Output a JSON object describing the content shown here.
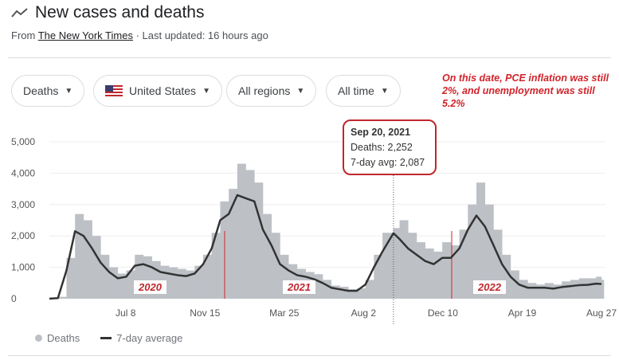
{
  "header": {
    "title": "New cases and deaths",
    "icon": "trending-line-icon",
    "from_label": "From",
    "source": "The New York Times",
    "updated": "· Last updated: 16 hours ago"
  },
  "filters": [
    {
      "label": "Deaths"
    },
    {
      "label": "United States",
      "icon": "us-flag-icon"
    },
    {
      "label": "All regions"
    },
    {
      "label": "All time"
    }
  ],
  "annotation": "On this date, PCE inflation was still 2%, and unemployment was still 5.2%",
  "tooltip": {
    "date": "Sep 20, 2021",
    "deaths": "Deaths: 2,252",
    "avg": "7-day avg: 2,087"
  },
  "year_labels": [
    "2020",
    "2021",
    "2022"
  ],
  "legend": {
    "bars": "Deaths",
    "line": "7-day average"
  },
  "colors": {
    "bars": "#bdc1c6",
    "line": "#333333",
    "annotation": "#d1232a"
  },
  "chart_data": {
    "type": "bar+line",
    "ylim": [
      0,
      5500
    ],
    "yticks": [
      {
        "v": 0,
        "label": "0"
      },
      {
        "v": 1000,
        "label": "1,000"
      },
      {
        "v": 2000,
        "label": "2,000"
      },
      {
        "v": 3000,
        "label": "3,000"
      },
      {
        "v": 4000,
        "label": "4,000"
      },
      {
        "v": 5000,
        "label": "5,000"
      }
    ],
    "xticks": [
      {
        "date": "2020-07-08",
        "label": "Jul 8"
      },
      {
        "date": "2020-11-15",
        "label": "Nov 15"
      },
      {
        "date": "2021-03-25",
        "label": "Mar 25"
      },
      {
        "date": "2021-08-02",
        "label": "Aug 2"
      },
      {
        "date": "2021-12-10",
        "label": "Dec 10"
      },
      {
        "date": "2022-04-19",
        "label": "Apr 19"
      },
      {
        "date": "2022-08-27",
        "label": "Aug 27"
      }
    ],
    "grid": true,
    "legend_position": "bottom-left",
    "series": [
      {
        "name": "7-day average",
        "kind": "line",
        "points": [
          [
            "2020-03-05",
            0
          ],
          [
            "2020-03-19",
            20
          ],
          [
            "2020-04-02",
            900
          ],
          [
            "2020-04-16",
            2150
          ],
          [
            "2020-04-30",
            2000
          ],
          [
            "2020-05-14",
            1600
          ],
          [
            "2020-05-28",
            1150
          ],
          [
            "2020-06-11",
            850
          ],
          [
            "2020-06-25",
            650
          ],
          [
            "2020-07-09",
            700
          ],
          [
            "2020-07-23",
            1050
          ],
          [
            "2020-08-06",
            1100
          ],
          [
            "2020-08-20",
            1000
          ],
          [
            "2020-09-03",
            850
          ],
          [
            "2020-09-17",
            800
          ],
          [
            "2020-10-01",
            750
          ],
          [
            "2020-10-15",
            720
          ],
          [
            "2020-10-29",
            800
          ],
          [
            "2020-11-12",
            1100
          ],
          [
            "2020-11-26",
            1600
          ],
          [
            "2020-12-10",
            2500
          ],
          [
            "2020-12-24",
            2700
          ],
          [
            "2021-01-07",
            3300
          ],
          [
            "2021-01-21",
            3200
          ],
          [
            "2021-02-04",
            3100
          ],
          [
            "2021-02-18",
            2200
          ],
          [
            "2021-03-04",
            1700
          ],
          [
            "2021-03-18",
            1100
          ],
          [
            "2021-04-01",
            900
          ],
          [
            "2021-04-15",
            750
          ],
          [
            "2021-04-29",
            700
          ],
          [
            "2021-05-13",
            620
          ],
          [
            "2021-05-27",
            500
          ],
          [
            "2021-06-10",
            350
          ],
          [
            "2021-06-24",
            300
          ],
          [
            "2021-07-08",
            250
          ],
          [
            "2021-07-22",
            250
          ],
          [
            "2021-08-05",
            450
          ],
          [
            "2021-08-19",
            1000
          ],
          [
            "2021-09-02",
            1500
          ],
          [
            "2021-09-20",
            2087
          ],
          [
            "2021-09-30",
            1900
          ],
          [
            "2021-10-14",
            1600
          ],
          [
            "2021-10-28",
            1400
          ],
          [
            "2021-11-11",
            1200
          ],
          [
            "2021-11-25",
            1100
          ],
          [
            "2021-12-09",
            1300
          ],
          [
            "2021-12-23",
            1300
          ],
          [
            "2022-01-06",
            1600
          ],
          [
            "2022-01-20",
            2200
          ],
          [
            "2022-02-03",
            2650
          ],
          [
            "2022-02-17",
            2300
          ],
          [
            "2022-03-03",
            1700
          ],
          [
            "2022-03-17",
            1100
          ],
          [
            "2022-03-31",
            700
          ],
          [
            "2022-04-14",
            450
          ],
          [
            "2022-04-28",
            350
          ],
          [
            "2022-05-12",
            350
          ],
          [
            "2022-05-26",
            350
          ],
          [
            "2022-06-09",
            320
          ],
          [
            "2022-06-23",
            370
          ],
          [
            "2022-07-07",
            400
          ],
          [
            "2022-07-21",
            430
          ],
          [
            "2022-08-04",
            440
          ],
          [
            "2022-08-18",
            480
          ],
          [
            "2022-08-27",
            470
          ]
        ]
      },
      {
        "name": "Deaths",
        "kind": "bar",
        "points": [
          [
            "2020-03-05",
            0
          ],
          [
            "2020-03-19",
            60
          ],
          [
            "2020-04-02",
            1300
          ],
          [
            "2020-04-16",
            2700
          ],
          [
            "2020-04-30",
            2500
          ],
          [
            "2020-05-14",
            2000
          ],
          [
            "2020-05-28",
            1400
          ],
          [
            "2020-06-11",
            1000
          ],
          [
            "2020-06-25",
            800
          ],
          [
            "2020-07-09",
            900
          ],
          [
            "2020-07-23",
            1400
          ],
          [
            "2020-08-06",
            1350
          ],
          [
            "2020-08-20",
            1200
          ],
          [
            "2020-09-03",
            1050
          ],
          [
            "2020-09-17",
            1000
          ],
          [
            "2020-10-01",
            950
          ],
          [
            "2020-10-15",
            900
          ],
          [
            "2020-10-29",
            1050
          ],
          [
            "2020-11-12",
            1400
          ],
          [
            "2020-11-26",
            2100
          ],
          [
            "2020-12-10",
            3100
          ],
          [
            "2020-12-24",
            3500
          ],
          [
            "2021-01-07",
            4300
          ],
          [
            "2021-01-21",
            4100
          ],
          [
            "2021-02-04",
            3700
          ],
          [
            "2021-02-18",
            2700
          ],
          [
            "2021-03-04",
            2100
          ],
          [
            "2021-03-18",
            1400
          ],
          [
            "2021-04-01",
            1100
          ],
          [
            "2021-04-15",
            950
          ],
          [
            "2021-04-29",
            850
          ],
          [
            "2021-05-13",
            780
          ],
          [
            "2021-05-27",
            600
          ],
          [
            "2021-06-10",
            420
          ],
          [
            "2021-06-24",
            380
          ],
          [
            "2021-07-08",
            300
          ],
          [
            "2021-07-22",
            330
          ],
          [
            "2021-08-05",
            600
          ],
          [
            "2021-08-19",
            1400
          ],
          [
            "2021-09-02",
            2100
          ],
          [
            "2021-09-20",
            2252
          ],
          [
            "2021-09-30",
            2500
          ],
          [
            "2021-10-14",
            2100
          ],
          [
            "2021-10-28",
            1800
          ],
          [
            "2021-11-11",
            1600
          ],
          [
            "2021-11-25",
            1500
          ],
          [
            "2021-12-09",
            1800
          ],
          [
            "2021-12-23",
            1700
          ],
          [
            "2022-01-06",
            2200
          ],
          [
            "2022-01-20",
            3000
          ],
          [
            "2022-02-03",
            3700
          ],
          [
            "2022-02-17",
            3000
          ],
          [
            "2022-03-03",
            2200
          ],
          [
            "2022-03-17",
            1400
          ],
          [
            "2022-03-31",
            900
          ],
          [
            "2022-04-14",
            600
          ],
          [
            "2022-04-28",
            500
          ],
          [
            "2022-05-12",
            450
          ],
          [
            "2022-05-26",
            500
          ],
          [
            "2022-06-09",
            450
          ],
          [
            "2022-06-23",
            550
          ],
          [
            "2022-07-07",
            600
          ],
          [
            "2022-07-21",
            650
          ],
          [
            "2022-08-04",
            650
          ],
          [
            "2022-08-18",
            700
          ],
          [
            "2022-08-27",
            600
          ]
        ]
      }
    ],
    "highlight_date": "2021-09-20"
  }
}
